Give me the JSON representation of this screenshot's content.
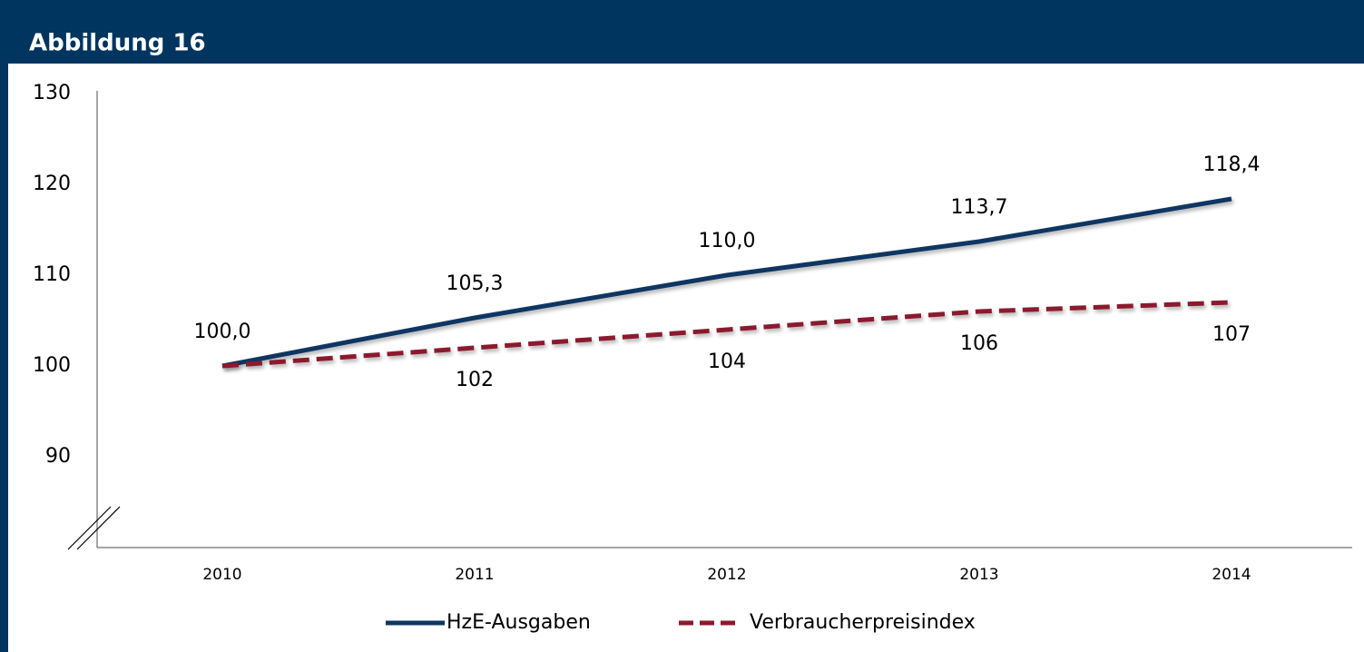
{
  "title": "Abbildung 16",
  "chart_data": {
    "type": "line",
    "categories": [
      "2010",
      "2011",
      "2012",
      "2013",
      "2014"
    ],
    "series": [
      {
        "name": "HzE-Ausgaben",
        "color": "#0f3663",
        "dash": false,
        "values": [
          100.0,
          105.3,
          110.0,
          113.7,
          118.4
        ],
        "value_labels": [
          "100,0",
          "105,3",
          "110,0",
          "113,7",
          "118,4"
        ],
        "label_position": "above"
      },
      {
        "name": "Verbraucherpreisindex",
        "color": "#8b1a2e",
        "dash": true,
        "values": [
          100,
          102,
          104,
          106,
          107
        ],
        "value_labels": [
          null,
          "102",
          "104",
          "106",
          "107"
        ],
        "label_position": "below"
      }
    ],
    "ylim": [
      80,
      130
    ],
    "yticks": [
      90,
      100,
      110,
      120,
      130
    ],
    "grid": false,
    "legend": "bottom"
  }
}
